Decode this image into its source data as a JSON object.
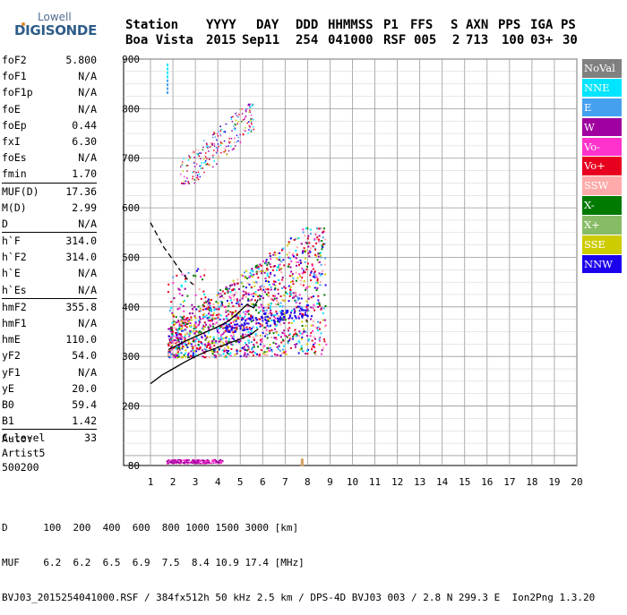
{
  "logo": {
    "line1": "Lowell",
    "line2": "DIGISONDE"
  },
  "header": {
    "labels": [
      "Station",
      "YYYY",
      "DAY",
      "DDD",
      "HHMMSS",
      "P1",
      "FFS",
      "S",
      "AXN",
      "PPS",
      "IGA",
      "PS"
    ],
    "values": [
      "Boa Vista",
      "2015",
      "Sep11",
      "254",
      "041000",
      "RSF",
      "005",
      "2",
      "713",
      "100",
      "03+",
      "30"
    ]
  },
  "params": {
    "group1": [
      {
        "label": "foF2",
        "value": "5.800"
      },
      {
        "label": "foF1",
        "value": "N/A"
      },
      {
        "label": "foF1p",
        "value": "N/A"
      },
      {
        "label": "foE",
        "value": "N/A"
      },
      {
        "label": "foEp",
        "value": "0.44"
      },
      {
        "label": "fxI",
        "value": "6.30"
      },
      {
        "label": "foEs",
        "value": "N/A"
      },
      {
        "label": "fmin",
        "value": "1.70"
      }
    ],
    "group2": [
      {
        "label": "MUF(D)",
        "value": "17.36"
      },
      {
        "label": "M(D)",
        "value": "2.99"
      },
      {
        "label": "D",
        "value": "N/A"
      }
    ],
    "group3": [
      {
        "label": "h`F",
        "value": "314.0"
      },
      {
        "label": "h`F2",
        "value": "314.0"
      },
      {
        "label": "h`E",
        "value": "N/A"
      },
      {
        "label": "h`Es",
        "value": "N/A"
      }
    ],
    "group4": [
      {
        "label": "hmF2",
        "value": "355.8"
      },
      {
        "label": "hmF1",
        "value": "N/A"
      },
      {
        "label": "hmE",
        "value": "110.0"
      },
      {
        "label": "yF2",
        "value": "54.0"
      },
      {
        "label": "yF1",
        "value": "N/A"
      },
      {
        "label": "yE",
        "value": "20.0"
      },
      {
        "label": "B0",
        "value": "59.4"
      },
      {
        "label": "B1",
        "value": "1.42"
      }
    ],
    "group5": [
      {
        "label": "C-level",
        "value": "33"
      }
    ]
  },
  "auto": {
    "line1": "Auto:",
    "line2": "Artist5",
    "line3": "500200"
  },
  "legend": [
    {
      "label": "NoVal",
      "color": "#808080"
    },
    {
      "label": "NNE",
      "color": "#00e5ff"
    },
    {
      "label": "E",
      "color": "#45a0f0"
    },
    {
      "label": "W",
      "color": "#a000a0"
    },
    {
      "label": "Vo-",
      "color": "#ff33cc"
    },
    {
      "label": "Vo+",
      "color": "#e8001f"
    },
    {
      "label": "SSW",
      "color": "#ffaaaa"
    },
    {
      "label": "X-",
      "color": "#007a00"
    },
    {
      "label": "X+",
      "color": "#88bb66"
    },
    {
      "label": "SSE",
      "color": "#cccc00"
    },
    {
      "label": "NNW",
      "color": "#1a00ee"
    }
  ],
  "footer": {
    "line1": "D      100  200  400  600  800 1000 1500 3000 [km]",
    "line2": "MUF    6.2  6.2  6.5  6.9  7.5  8.4 10.9 17.4 [MHz]",
    "line3": "BVJ03_2015254041000.RSF / 384fx512h 50 kHz 2.5 km / DPS-4D BVJ03 003 / 2.8 N 299.3 E  Ion2Png 1.3.20"
  },
  "chart_data": {
    "type": "scatter",
    "xlabel": "",
    "ylabel": "",
    "xlim": [
      1,
      20
    ],
    "ylim": [
      80,
      900
    ],
    "xticks": [
      1,
      2,
      3,
      4,
      5,
      6,
      7,
      8,
      9,
      10,
      11,
      12,
      13,
      14,
      15,
      16,
      17,
      18,
      19,
      20
    ],
    "yticks": [
      80,
      200,
      300,
      400,
      500,
      600,
      700,
      800,
      900
    ],
    "grid": true,
    "legend_position": "right",
    "trace_F2": {
      "x": [
        1.8,
        2.0,
        2.5,
        3.0,
        3.5,
        4.0,
        4.5,
        5.0,
        5.3,
        5.6,
        5.8
      ],
      "y": [
        314,
        318,
        330,
        340,
        350,
        360,
        372,
        392,
        405,
        398,
        415
      ]
    },
    "profile_lower": {
      "x": [
        1.0,
        1.5,
        2.0,
        2.5,
        3.0,
        3.5,
        4.0,
        4.5,
        5.0,
        5.5,
        5.8
      ],
      "y": [
        245,
        262,
        275,
        288,
        300,
        310,
        318,
        327,
        335,
        345,
        356
      ]
    },
    "profile_upper": {
      "x": [
        1.0,
        1.3,
        1.6,
        2.0,
        2.3,
        2.6,
        2.9
      ],
      "y": [
        570,
        545,
        520,
        495,
        475,
        458,
        445
      ]
    },
    "echo_clouds": [
      {
        "name": "F2 trace echoes",
        "x_range": [
          1.7,
          8.8
        ],
        "y_range": [
          300,
          560
        ]
      },
      {
        "name": "2nd hop echoes",
        "x_range": [
          2.3,
          5.7
        ],
        "y_range": [
          650,
          810
        ]
      },
      {
        "name": "E-region echoes",
        "x_range": [
          1.7,
          5.7
        ],
        "y_range": [
          80,
          100
        ]
      }
    ]
  }
}
